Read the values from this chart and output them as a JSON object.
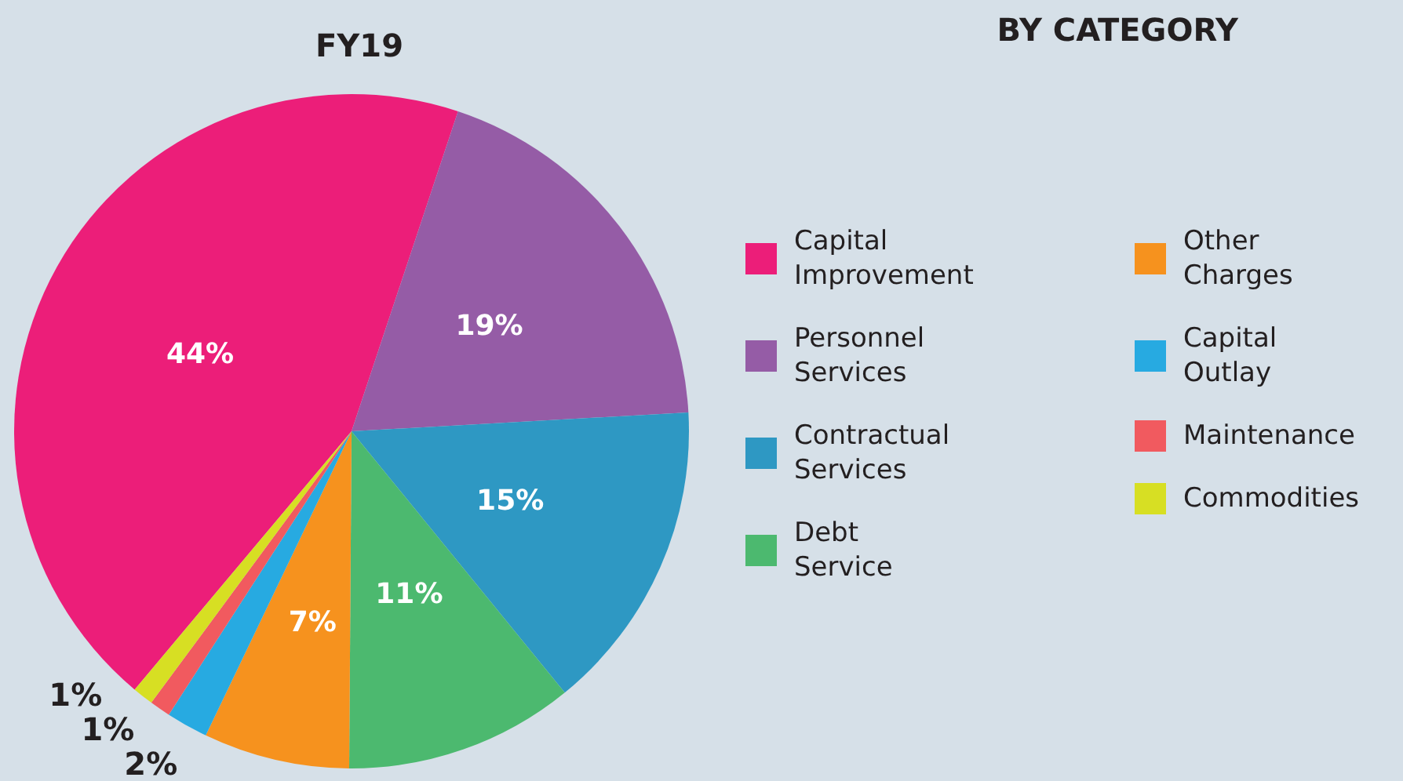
{
  "chart_data": {
    "type": "pie",
    "title": "BY CATEGORY",
    "subtitle": "FY19",
    "categories": [
      "Capital Improvement",
      "Personnel Services",
      "Contractual Services",
      "Debt Service",
      "Other Charges",
      "Capital Outlay",
      "Maintenance",
      "Commodities"
    ],
    "values": [
      44,
      19,
      15,
      11,
      7,
      2,
      1,
      1
    ],
    "value_labels": [
      "44%",
      "19%",
      "15%",
      "11%",
      "7%",
      "2%",
      "1%",
      "1%"
    ],
    "colors": [
      "#ec1e79",
      "#955ca6",
      "#2e98c3",
      "#4cb96f",
      "#f6921e",
      "#27aae1",
      "#f15a5f",
      "#d7df23"
    ],
    "legend": "right"
  }
}
